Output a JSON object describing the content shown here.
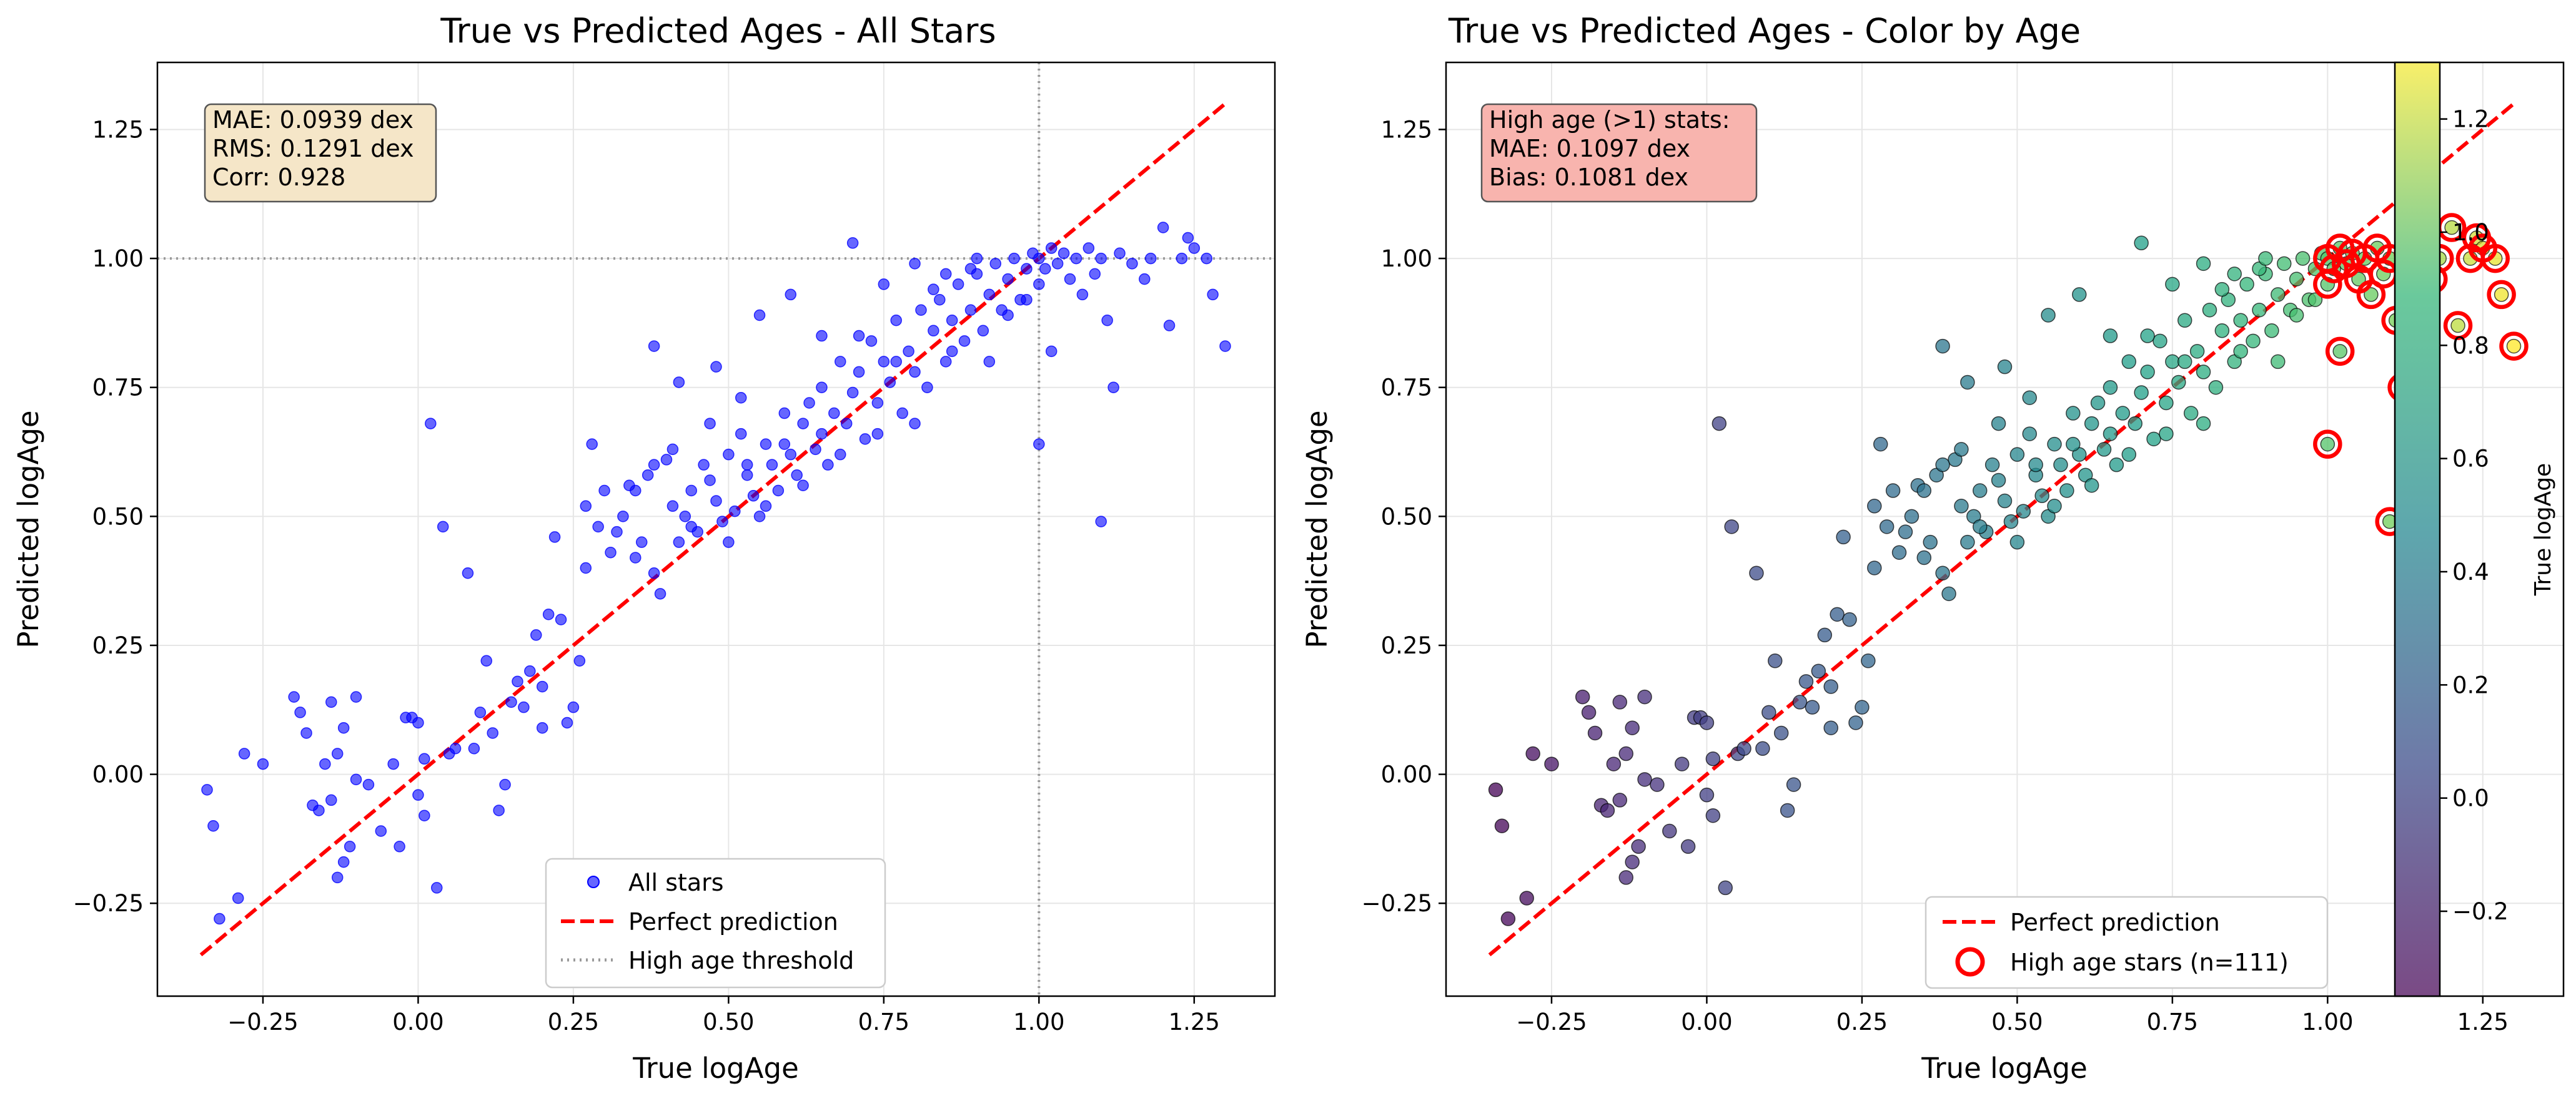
{
  "chart_data": [
    {
      "type": "scatter",
      "title": "True vs Predicted Ages - All Stars",
      "xlabel": "True logAge",
      "ylabel": "Predicted logAge",
      "xlim": [
        -0.42,
        1.38
      ],
      "ylim": [
        -0.43,
        1.38
      ],
      "xticks": [
        -0.25,
        0.0,
        0.25,
        0.5,
        0.75,
        1.0,
        1.25
      ],
      "xtick_labels": [
        "−0.25",
        "0.00",
        "0.25",
        "0.50",
        "0.75",
        "1.00",
        "1.25"
      ],
      "yticks": [
        -0.25,
        0.0,
        0.25,
        0.5,
        0.75,
        1.0,
        1.25
      ],
      "ytick_labels": [
        "−0.25",
        "0.00",
        "0.25",
        "0.50",
        "0.75",
        "1.00",
        "1.25"
      ],
      "grid": true,
      "stats_lines": [
        "MAE: 0.0939 dex",
        "RMS: 0.1291 dex",
        "Corr: 0.928"
      ],
      "stats_box_color": "#f5e6c8",
      "threshold": 1.0,
      "perfect_line": [
        -0.35,
        1.3
      ],
      "legend_position": "lower-center",
      "legend": [
        {
          "label": "All stars",
          "kind": "marker",
          "color": "#1f1fff"
        },
        {
          "label": "Perfect prediction",
          "kind": "dashed",
          "color": "#ff0000"
        },
        {
          "label": "High age threshold",
          "kind": "dotted",
          "color": "#999999"
        }
      ],
      "series": [
        {
          "name": "All stars",
          "color": "#0000ff",
          "points": [
            [
              -0.34,
              -0.03
            ],
            [
              -0.33,
              -0.1
            ],
            [
              -0.32,
              -0.28
            ],
            [
              -0.29,
              -0.24
            ],
            [
              -0.28,
              0.04
            ],
            [
              -0.25,
              0.02
            ],
            [
              -0.2,
              0.15
            ],
            [
              -0.19,
              0.12
            ],
            [
              -0.18,
              0.08
            ],
            [
              -0.17,
              -0.06
            ],
            [
              -0.16,
              -0.07
            ],
            [
              -0.15,
              0.02
            ],
            [
              -0.14,
              0.14
            ],
            [
              -0.14,
              -0.05
            ],
            [
              -0.13,
              0.04
            ],
            [
              -0.12,
              0.09
            ],
            [
              -0.12,
              -0.17
            ],
            [
              -0.13,
              -0.2
            ],
            [
              -0.11,
              -0.14
            ],
            [
              -0.1,
              0.15
            ],
            [
              -0.1,
              -0.01
            ],
            [
              -0.08,
              -0.02
            ],
            [
              -0.06,
              -0.11
            ],
            [
              -0.04,
              0.02
            ],
            [
              -0.03,
              -0.14
            ],
            [
              -0.02,
              0.11
            ],
            [
              -0.01,
              0.11
            ],
            [
              0.0,
              0.1
            ],
            [
              0.0,
              -0.04
            ],
            [
              0.01,
              -0.08
            ],
            [
              0.01,
              0.03
            ],
            [
              0.02,
              0.68
            ],
            [
              0.03,
              -0.22
            ],
            [
              0.04,
              0.48
            ],
            [
              0.05,
              0.04
            ],
            [
              0.06,
              0.05
            ],
            [
              0.08,
              0.39
            ],
            [
              0.09,
              0.05
            ],
            [
              0.1,
              0.12
            ],
            [
              0.11,
              0.22
            ],
            [
              0.12,
              0.08
            ],
            [
              0.13,
              -0.07
            ],
            [
              0.14,
              -0.02
            ],
            [
              0.15,
              0.14
            ],
            [
              0.16,
              0.18
            ],
            [
              0.17,
              0.13
            ],
            [
              0.18,
              0.2
            ],
            [
              0.19,
              0.27
            ],
            [
              0.2,
              0.17
            ],
            [
              0.2,
              0.09
            ],
            [
              0.21,
              0.31
            ],
            [
              0.22,
              0.46
            ],
            [
              0.23,
              0.3
            ],
            [
              0.24,
              0.1
            ],
            [
              0.25,
              0.13
            ],
            [
              0.26,
              0.22
            ],
            [
              0.27,
              0.4
            ],
            [
              0.27,
              0.52
            ],
            [
              0.28,
              0.64
            ],
            [
              0.29,
              0.48
            ],
            [
              0.3,
              0.55
            ],
            [
              0.31,
              0.43
            ],
            [
              0.32,
              0.47
            ],
            [
              0.33,
              0.5
            ],
            [
              0.34,
              0.56
            ],
            [
              0.35,
              0.42
            ],
            [
              0.36,
              0.45
            ],
            [
              0.37,
              0.58
            ],
            [
              0.38,
              0.39
            ],
            [
              0.39,
              0.35
            ],
            [
              0.4,
              0.61
            ],
            [
              0.41,
              0.52
            ],
            [
              0.42,
              0.45
            ],
            [
              0.43,
              0.5
            ],
            [
              0.44,
              0.55
            ],
            [
              0.45,
              0.47
            ],
            [
              0.46,
              0.6
            ],
            [
              0.47,
              0.57
            ],
            [
              0.48,
              0.53
            ],
            [
              0.49,
              0.49
            ],
            [
              0.5,
              0.62
            ],
            [
              0.51,
              0.51
            ],
            [
              0.52,
              0.66
            ],
            [
              0.53,
              0.58
            ],
            [
              0.54,
              0.54
            ],
            [
              0.55,
              0.5
            ],
            [
              0.56,
              0.64
            ],
            [
              0.57,
              0.6
            ],
            [
              0.58,
              0.55
            ],
            [
              0.59,
              0.7
            ],
            [
              0.6,
              0.62
            ],
            [
              0.61,
              0.58
            ],
            [
              0.62,
              0.68
            ],
            [
              0.63,
              0.72
            ],
            [
              0.64,
              0.63
            ],
            [
              0.65,
              0.66
            ],
            [
              0.66,
              0.6
            ],
            [
              0.67,
              0.7
            ],
            [
              0.68,
              0.8
            ],
            [
              0.69,
              0.68
            ],
            [
              0.7,
              0.74
            ],
            [
              0.71,
              0.78
            ],
            [
              0.72,
              0.65
            ],
            [
              0.73,
              0.84
            ],
            [
              0.74,
              0.72
            ],
            [
              0.75,
              0.8
            ],
            [
              0.76,
              0.76
            ],
            [
              0.77,
              0.88
            ],
            [
              0.78,
              0.7
            ],
            [
              0.79,
              0.82
            ],
            [
              0.8,
              0.78
            ],
            [
              0.81,
              0.9
            ],
            [
              0.82,
              0.75
            ],
            [
              0.83,
              0.86
            ],
            [
              0.84,
              0.92
            ],
            [
              0.85,
              0.8
            ],
            [
              0.86,
              0.88
            ],
            [
              0.87,
              0.95
            ],
            [
              0.88,
              0.84
            ],
            [
              0.89,
              0.9
            ],
            [
              0.9,
              0.97
            ],
            [
              0.91,
              0.86
            ],
            [
              0.92,
              0.93
            ],
            [
              0.93,
              0.99
            ],
            [
              0.94,
              0.9
            ],
            [
              0.95,
              0.96
            ],
            [
              0.96,
              1.0
            ],
            [
              0.97,
              0.92
            ],
            [
              0.98,
              0.98
            ],
            [
              0.99,
              1.01
            ],
            [
              1.0,
              0.95
            ],
            [
              1.0,
              1.0
            ],
            [
              1.0,
              0.64
            ],
            [
              1.01,
              0.98
            ],
            [
              1.02,
              1.02
            ],
            [
              1.02,
              0.82
            ],
            [
              1.03,
              0.99
            ],
            [
              1.04,
              1.01
            ],
            [
              1.05,
              0.96
            ],
            [
              1.06,
              1.0
            ],
            [
              1.07,
              0.93
            ],
            [
              1.08,
              1.02
            ],
            [
              1.09,
              0.97
            ],
            [
              1.1,
              0.49
            ],
            [
              1.1,
              1.0
            ],
            [
              1.11,
              0.88
            ],
            [
              1.12,
              0.75
            ],
            [
              1.13,
              1.01
            ],
            [
              1.15,
              0.99
            ],
            [
              1.17,
              0.96
            ],
            [
              1.18,
              1.0
            ],
            [
              1.2,
              1.06
            ],
            [
              1.21,
              0.87
            ],
            [
              1.23,
              1.0
            ],
            [
              1.24,
              1.04
            ],
            [
              1.25,
              1.02
            ],
            [
              1.27,
              1.0
            ],
            [
              1.28,
              0.93
            ],
            [
              1.3,
              0.83
            ],
            [
              0.35,
              0.55
            ],
            [
              0.38,
              0.6
            ],
            [
              0.41,
              0.63
            ],
            [
              0.44,
              0.48
            ],
            [
              0.47,
              0.68
            ],
            [
              0.5,
              0.45
            ],
            [
              0.53,
              0.6
            ],
            [
              0.56,
              0.52
            ],
            [
              0.59,
              0.64
            ],
            [
              0.62,
              0.56
            ],
            [
              0.65,
              0.75
            ],
            [
              0.68,
              0.62
            ],
            [
              0.71,
              0.85
            ],
            [
              0.74,
              0.66
            ],
            [
              0.77,
              0.8
            ],
            [
              0.8,
              0.68
            ],
            [
              0.83,
              0.94
            ],
            [
              0.86,
              0.82
            ],
            [
              0.89,
              0.98
            ],
            [
              0.92,
              0.8
            ],
            [
              0.95,
              0.89
            ],
            [
              0.98,
              0.92
            ],
            [
              0.55,
              0.89
            ],
            [
              0.6,
              0.93
            ],
            [
              0.65,
              0.85
            ],
            [
              0.7,
              1.03
            ],
            [
              0.75,
              0.95
            ],
            [
              0.8,
              0.99
            ],
            [
              0.85,
              0.97
            ],
            [
              0.9,
              1.0
            ],
            [
              0.38,
              0.83
            ],
            [
              0.42,
              0.76
            ],
            [
              0.48,
              0.79
            ],
            [
              0.52,
              0.73
            ]
          ]
        }
      ]
    },
    {
      "type": "scatter",
      "title": "True vs Predicted Ages - Color by Age",
      "xlabel": "True logAge",
      "ylabel": "Predicted logAge",
      "xlim": [
        -0.42,
        1.38
      ],
      "ylim": [
        -0.43,
        1.38
      ],
      "xticks": [
        -0.25,
        0.0,
        0.25,
        0.5,
        0.75,
        1.0,
        1.25
      ],
      "xtick_labels": [
        "−0.25",
        "0.00",
        "0.25",
        "0.50",
        "0.75",
        "1.00",
        "1.25"
      ],
      "yticks": [
        -0.25,
        0.0,
        0.25,
        0.5,
        0.75,
        1.0,
        1.25
      ],
      "ytick_labels": [
        "−0.25",
        "0.00",
        "0.25",
        "0.50",
        "0.75",
        "1.00",
        "1.25"
      ],
      "grid": true,
      "stats_lines": [
        "High age (>1) stats:",
        "MAE: 0.1097 dex",
        "Bias: 0.1081 dex"
      ],
      "stats_box_color": "#f8b4ae",
      "perfect_line": [
        -0.35,
        1.3
      ],
      "legend_position": "lower-right",
      "legend": [
        {
          "label": "Perfect prediction",
          "kind": "dashed",
          "color": "#ff0000"
        },
        {
          "label": "High age stars (n=111)",
          "kind": "ring",
          "color": "#ff0000"
        }
      ],
      "colorbar": {
        "label": "True logAge",
        "range": [
          -0.35,
          1.3
        ],
        "ticks": [
          -0.2,
          0.0,
          0.2,
          0.4,
          0.6,
          0.8,
          1.0,
          1.2
        ],
        "tick_labels": [
          "−0.2",
          "0.0",
          "0.2",
          "0.4",
          "0.6",
          "0.8",
          "1.0",
          "1.2"
        ]
      },
      "highlight_threshold": 1.0,
      "highlight_color": "#ff0000"
    }
  ]
}
